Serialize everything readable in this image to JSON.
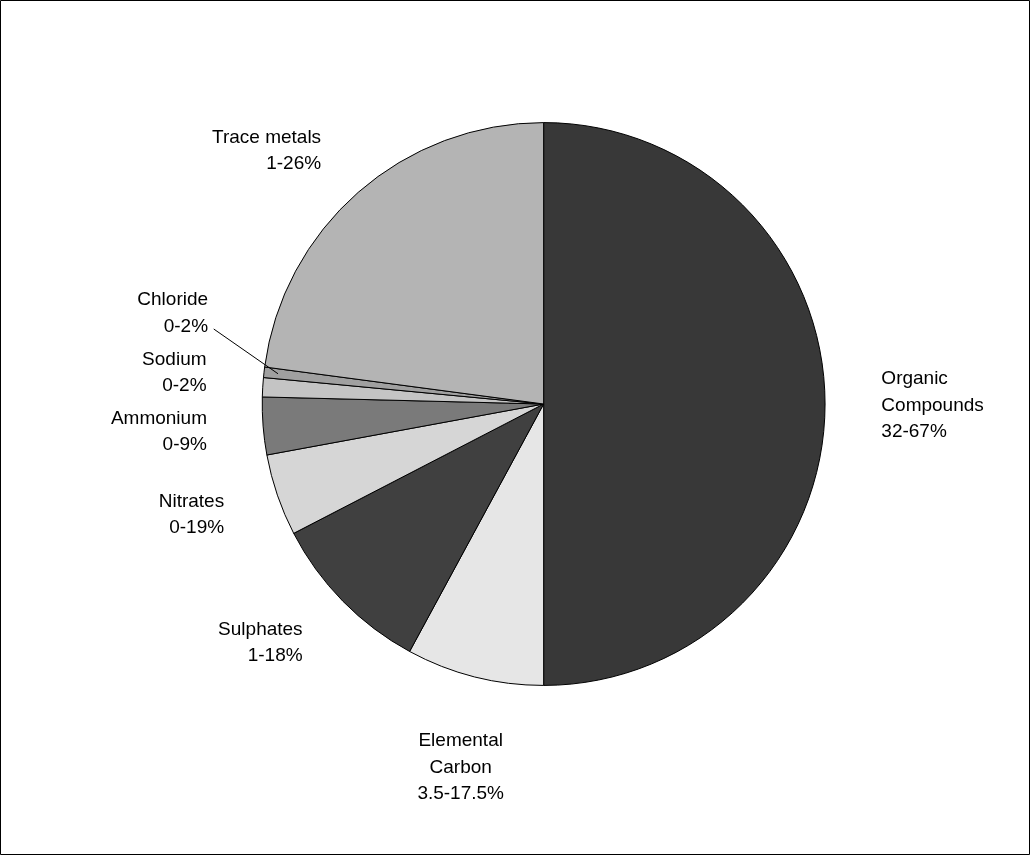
{
  "chart_data": {
    "type": "pie",
    "categories": [
      "Organic Compounds 32-67%",
      "Elemental Carbon 3.5-17.5%",
      "Sulphates 1-18%",
      "Nitrates 0-19%",
      "Ammonium 0-9%",
      "Sodium 0-2%",
      "Chloride 0-2%",
      "Trace metals 1-26%"
    ],
    "values": [
      50,
      7.9,
      9.5,
      4.7,
      3.3,
      1.1,
      0.6,
      22.9
    ],
    "colors": [
      "#383838",
      "#e6e6e6",
      "#404040",
      "#d6d6d6",
      "#7a7a7a",
      "#c4c4c4",
      "#a0a0a0",
      "#b4b4b4"
    ]
  }
}
